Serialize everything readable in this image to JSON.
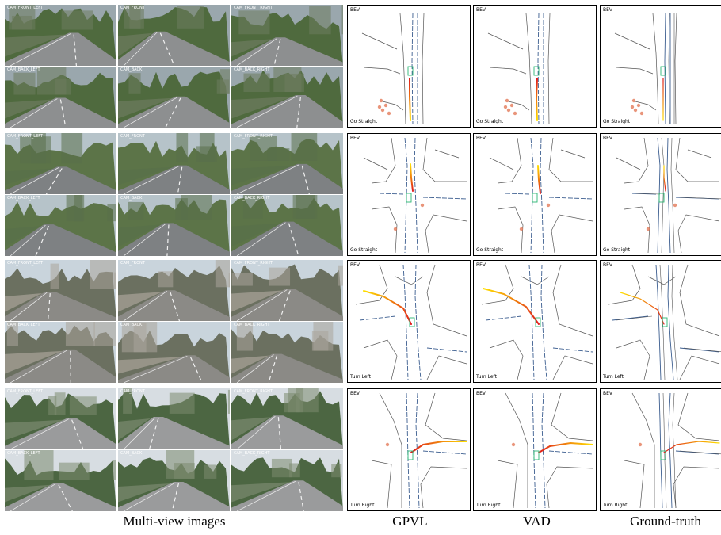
{
  "rows": [
    {
      "cameras": [
        "CAM_FRONT_LEFT",
        "CAM_FRONT",
        "CAM_FRONT_RIGHT",
        "CAM_BACK_LEFT",
        "CAM_BACK",
        "CAM_BACK_RIGHT"
      ],
      "command": "Go Straight"
    },
    {
      "cameras": [
        "CAM_FRONT_LEFT",
        "CAM_FRONT",
        "CAM_FRONT_RIGHT",
        "CAM_BACK_LEFT",
        "CAM_BACK",
        "CAM_BACK_RIGHT"
      ],
      "command": "Go Straight"
    },
    {
      "cameras": [
        "CAM_FRONT_LEFT",
        "CAM_FRONT",
        "CAM_FRONT_RIGHT",
        "CAM_BACK_LEFT",
        "CAM_BACK",
        "CAM_BACK_RIGHT"
      ],
      "command": "Turn Left"
    },
    {
      "cameras": [
        "CAM_FRONT_LEFT",
        "CAM_FRONT",
        "CAM_FRONT_RIGHT",
        "CAM_BACK_LEFT",
        "CAM_BACK",
        "CAM_BACK_RIGHT"
      ],
      "command": "Turn Right"
    }
  ],
  "bev_title": "BEV",
  "captions": {
    "images": "Multi-view images",
    "gpvl": "GPVL",
    "vad": "VAD",
    "gt": "Ground-truth"
  },
  "colors": {
    "map_line": "#3b5d8f",
    "road_edge": "#555555",
    "trajectory_start": "#e01b1b",
    "trajectory_end": "#ffe000",
    "ego_box": "#2bb673",
    "agent": "#e37b5a"
  }
}
